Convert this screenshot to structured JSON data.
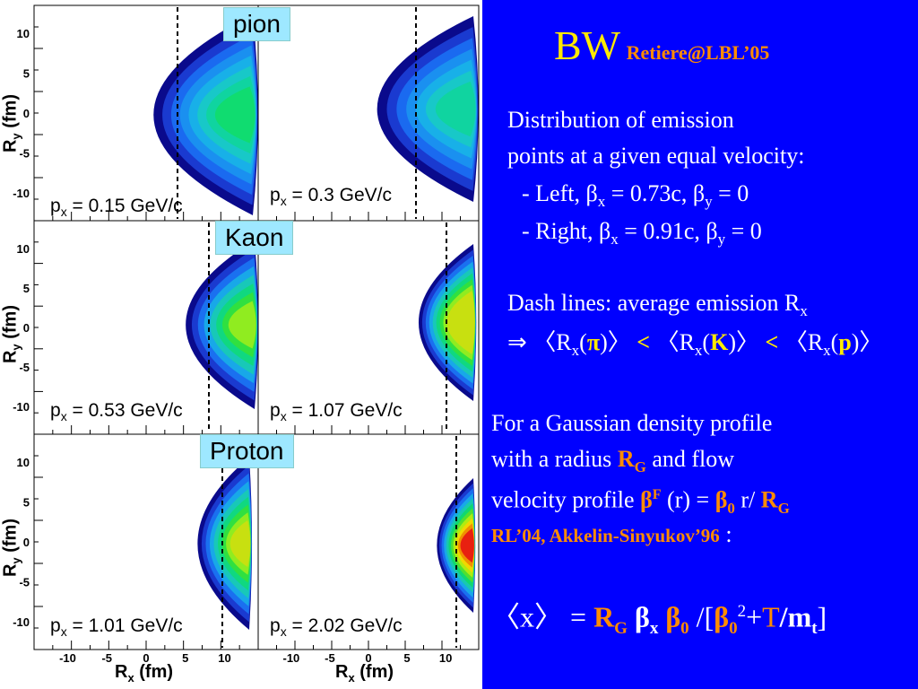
{
  "left": {
    "labels": {
      "pion": "pion",
      "kaon": "Kaon",
      "proton": "Proton"
    },
    "momenta": [
      {
        "l": "p",
        "s": "x",
        "r": " = 0.15 GeV/c"
      },
      {
        "l": "p",
        "s": "x",
        "r": " = 0.3 GeV/c"
      },
      {
        "l": "p",
        "s": "x",
        "r": " = 0.53 GeV/c"
      },
      {
        "l": "p",
        "s": "x",
        "r": " = 1.07 GeV/c"
      },
      {
        "l": "p",
        "s": "x",
        "r": " = 1.01 GeV/c"
      },
      {
        "l": "p",
        "s": "x",
        "r": " = 2.02 GeV/c"
      }
    ],
    "ylabel": "R",
    "ylabel_sub": "y",
    "ylabel_unit": " (fm)",
    "xlabel": "R",
    "xlabel_sub": "x",
    "xlabel_unit": " (fm)",
    "yticks": [
      "10",
      "5",
      "0",
      "-5",
      "-10"
    ],
    "xticks": [
      "-10",
      "-5",
      "0",
      "5",
      "10"
    ]
  },
  "right": {
    "title": "BW",
    "title_ref": "Retiere@LBL’05",
    "l1": "Distribution of emission",
    "l2": "points at a given equal velocity:",
    "l3a": "- Left, β",
    "l3b": "x",
    "l3c": " = 0.73c, β",
    "l3d": "y",
    "l3e": " = 0",
    "l4a": "- Right, β",
    "l4b": "x",
    "l4c": " = 0.91c, β",
    "l4d": "y",
    "l4e": " = 0",
    "l5a": "Dash lines: average emission R",
    "l5b": "x",
    "l6a": "⇒ 〈R",
    "l6b": "x",
    "l6c": "(",
    "l6d": "π",
    "l6e": ")〉 ",
    "l6f": "<",
    "l6g": " 〈R",
    "l6h": "x",
    "l6i": "(",
    "l6j": "K",
    "l6k": ")〉 ",
    "l6l": "<",
    "l6m": " 〈R",
    "l6n": "x",
    "l6o": "(",
    "l6p": "p",
    "l6q": ")〉",
    "l7": "For a Gaussian density profile",
    "l8a": "with a radius ",
    "l8b": "R",
    "l8c": "G",
    "l8d": " and flow",
    "l9a": "velocity profile ",
    "l9b": "β",
    "l9c": "F",
    "l9d": " (r) = ",
    "l9e": "β",
    "l9f": "0",
    "l9g": " r/ ",
    "l9h": "R",
    "l9i": "G",
    "l10a": "RL’04, Akkelin-Sinyukov’96",
    "l10b": " :",
    "f1": "〈x〉 = ",
    "f2": "R",
    "f3": "G",
    "f4": " β",
    "f5": "x",
    "f6": " β",
    "f7": "0",
    "f8": " /[",
    "f9": "β",
    "f10": "0",
    "f11": "2",
    "f12": "+",
    "f13": "T",
    "f14": "/m",
    "f15": "t",
    "f16": "]"
  }
}
